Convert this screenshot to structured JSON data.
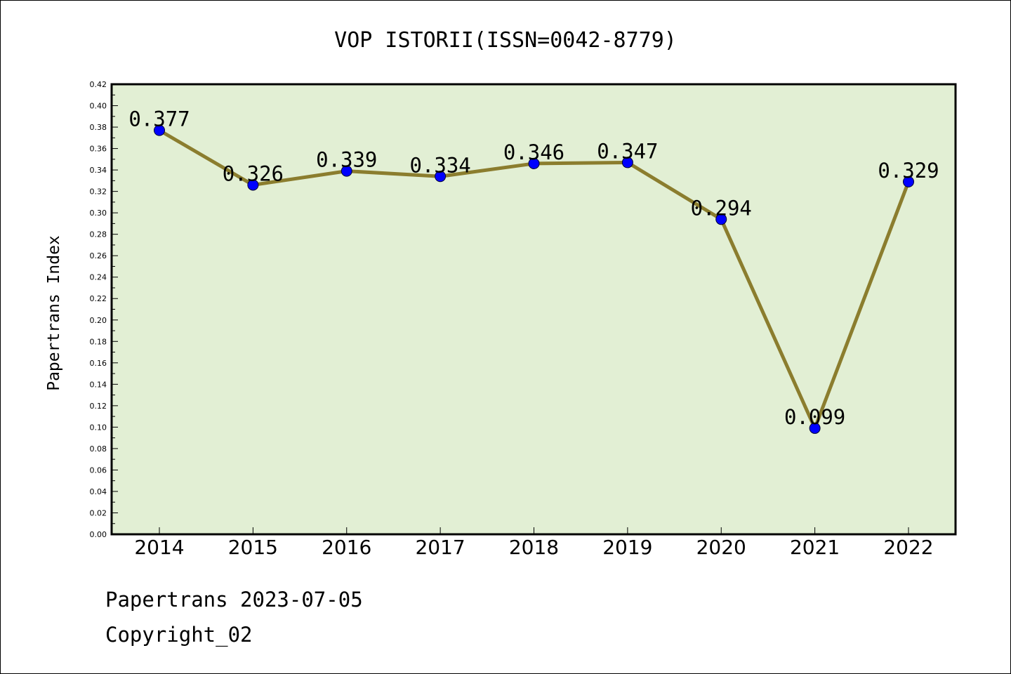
{
  "chart_data": {
    "type": "line",
    "title": "VOP ISTORII(ISSN=0042-8779)",
    "xlabel": "",
    "ylabel": "Papertrans Index",
    "categories": [
      "2014",
      "2015",
      "2016",
      "2017",
      "2018",
      "2019",
      "2020",
      "2021",
      "2022"
    ],
    "series": [
      {
        "values": [
          0.377,
          0.326,
          0.339,
          0.334,
          0.346,
          0.347,
          0.294,
          0.099,
          0.329
        ],
        "labels": [
          "0.377",
          "0.326",
          "0.339",
          "0.334",
          "0.346",
          "0.347",
          "0.294",
          "0.099",
          "0.329"
        ],
        "line_color": "#8b7d2e",
        "marker_color": "#0000ff"
      }
    ],
    "ylim": [
      0,
      0.42
    ],
    "yticks": [
      "0.00",
      "0.02",
      "0.04",
      "0.06",
      "0.08",
      "0.10",
      "0.12",
      "0.14",
      "0.16",
      "0.18",
      "0.20",
      "0.22",
      "0.24",
      "0.26",
      "0.28",
      "0.30",
      "0.32",
      "0.34",
      "0.36",
      "0.38",
      "0.40",
      "0.42"
    ],
    "grid": false,
    "plot_background": "#e2efd4"
  },
  "footer": {
    "line1": "Papertrans 2023-07-05",
    "line2": "Copyright_02"
  }
}
